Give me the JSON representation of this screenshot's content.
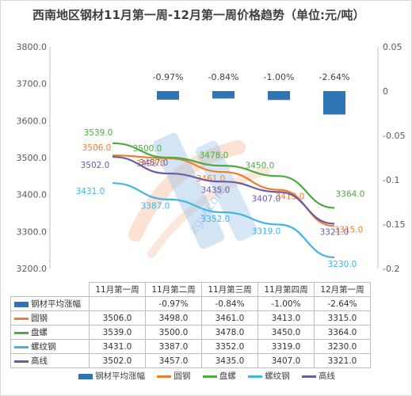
{
  "chart_data": {
    "type": "line",
    "title": "西南地区钢材11月第一周-12月第一周价格趋势（单位:元/吨）",
    "categories": [
      "11月第一周",
      "11月第二周",
      "11月第三周",
      "11月第四周",
      "12月第一周"
    ],
    "left_axis": {
      "min": 3200,
      "max": 3800,
      "step": 100,
      "ticks": [
        "3200.0",
        "3300.0",
        "3400.0",
        "3500.0",
        "3600.0",
        "3700.0",
        "3800.0"
      ]
    },
    "right_axis": {
      "min": -0.2,
      "max": 0.05,
      "step": 0.05,
      "ticks": [
        "-0.2",
        "-0.15",
        "-0.1",
        "-0.05",
        "0",
        "0.05"
      ]
    },
    "bar_series": {
      "name": "钢材平均涨幅",
      "color": "#2e75b6",
      "values": [
        null,
        -0.0097,
        -0.0084,
        -0.01,
        -0.0264
      ],
      "labels": [
        "",
        "-0.97%",
        "-0.84%",
        "-1.00%",
        "-2.64%"
      ]
    },
    "series": [
      {
        "name": "圆钢",
        "color": "#ed7d31",
        "values": [
          3506,
          3498,
          3461,
          3413,
          3315
        ],
        "labels": [
          "3506.0",
          "3498.0",
          "3461.0",
          "3413.0",
          "3315.0"
        ]
      },
      {
        "name": "盘螺",
        "color": "#4daa3f",
        "values": [
          3539,
          3500,
          3478,
          3450,
          3364
        ],
        "labels": [
          "3539.0",
          "3500.0",
          "3478.0",
          "3450.0",
          "3364.0"
        ]
      },
      {
        "name": "螺纹钢",
        "color": "#42b4e6",
        "values": [
          3431,
          3387,
          3352,
          3319,
          3230
        ],
        "labels": [
          "3431.0",
          "3387.0",
          "3352.0",
          "3319.0",
          "3230.0"
        ]
      },
      {
        "name": "高线",
        "color": "#6b5ba5",
        "values": [
          3502,
          3457,
          3435,
          3407,
          3321
        ],
        "labels": [
          "3502.0",
          "3457.0",
          "3435.0",
          "3407.0",
          "3321.0"
        ]
      }
    ],
    "legend": "bottom",
    "grid": false
  },
  "table": {
    "rows": [
      {
        "name": "钢材平均涨幅",
        "cells": [
          "",
          "-0.97%",
          "-0.84%",
          "-1.00%",
          "-2.64%"
        ]
      },
      {
        "name": "圆钢",
        "cells": [
          "3506.0",
          "3498.0",
          "3461.0",
          "3413.0",
          "3315.0"
        ]
      },
      {
        "name": "盘螺",
        "cells": [
          "3539.0",
          "3500.0",
          "3478.0",
          "3450.0",
          "3364.0"
        ]
      },
      {
        "name": "螺纹钢",
        "cells": [
          "3431.0",
          "3387.0",
          "3352.0",
          "3319.0",
          "3230.0"
        ]
      },
      {
        "name": "高线",
        "cells": [
          "3502.0",
          "3457.0",
          "3435.0",
          "3407.0",
          "3321.0"
        ]
      }
    ]
  },
  "watermark": {
    "text": "zgw.com",
    "colors": [
      "#4a7fd0",
      "#f4b183"
    ]
  }
}
